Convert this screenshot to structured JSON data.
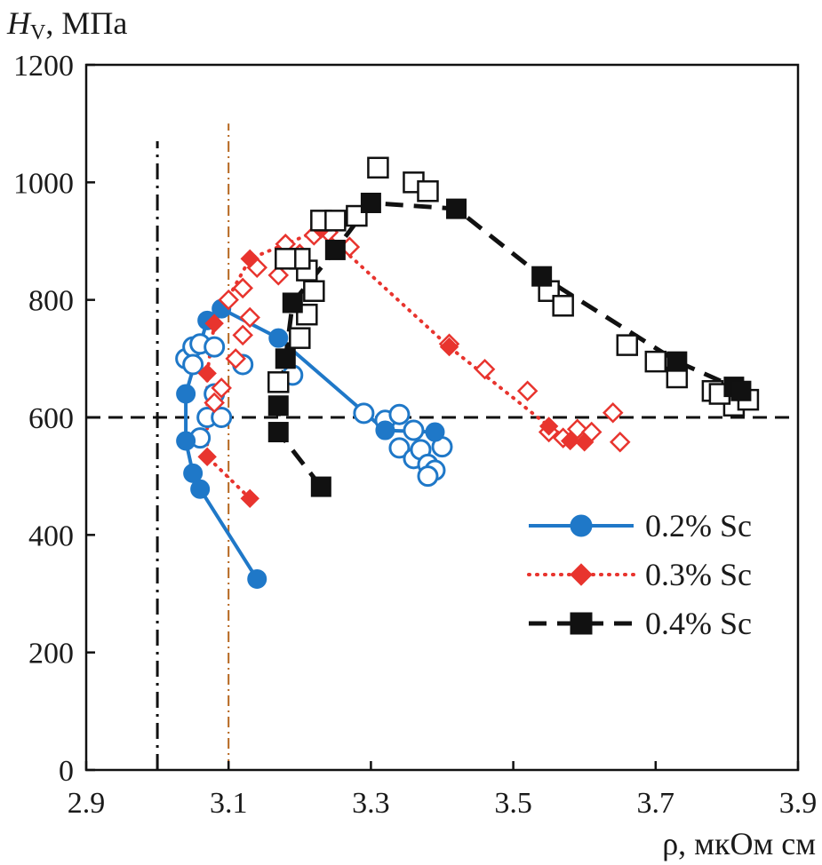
{
  "chart_data": {
    "type": "scatter",
    "ylabel_symbol": "H",
    "ylabel_subscript": "V",
    "ylabel_unit": ", МПа",
    "xlabel": "ρ, мкОм см",
    "xlim": [
      2.9,
      3.9
    ],
    "ylim": [
      0,
      1200
    ],
    "xticks": [
      2.9,
      3.1,
      3.3,
      3.5,
      3.7,
      3.9
    ],
    "xtick_labels": [
      "2.9",
      "3.1",
      "3.3",
      "3.5",
      "3.7",
      "3.9"
    ],
    "yticks": [
      0,
      200,
      400,
      600,
      800,
      1000,
      1200
    ],
    "ytick_labels": [
      "0",
      "200",
      "400",
      "600",
      "800",
      "1000",
      "1200"
    ],
    "reference_lines": [
      {
        "name": "hline-600",
        "orientation": "horizontal",
        "value": 600,
        "style": "dashed",
        "color": "#111111"
      },
      {
        "name": "vline-3.0",
        "orientation": "vertical",
        "value": 3.0,
        "ymax": 1070,
        "style": "dashdot",
        "color": "#111111"
      },
      {
        "name": "vline-3.1",
        "orientation": "vertical",
        "value": 3.1,
        "ymax": 1100,
        "style": "dashdot-thin",
        "color": "#b5651d"
      }
    ],
    "series": [
      {
        "name": "0.2% Sc",
        "label": "0.2% Sc",
        "color": "#1f78c8",
        "marker": "circle",
        "line": "solid",
        "filled_points": [
          [
            3.14,
            325
          ],
          [
            3.06,
            478
          ],
          [
            3.05,
            505
          ],
          [
            3.04,
            560
          ],
          [
            3.04,
            640
          ],
          [
            3.07,
            765
          ],
          [
            3.09,
            785
          ],
          [
            3.17,
            735
          ],
          [
            3.32,
            578
          ],
          [
            3.39,
            575
          ]
        ],
        "open_points": [
          [
            3.04,
            700
          ],
          [
            3.05,
            720
          ],
          [
            3.06,
            725
          ],
          [
            3.08,
            720
          ],
          [
            3.05,
            690
          ],
          [
            3.08,
            640
          ],
          [
            3.12,
            690
          ],
          [
            3.07,
            600
          ],
          [
            3.09,
            600
          ],
          [
            3.06,
            565
          ],
          [
            3.19,
            672
          ],
          [
            3.29,
            607
          ],
          [
            3.32,
            595
          ],
          [
            3.34,
            605
          ],
          [
            3.36,
            578
          ],
          [
            3.34,
            548
          ],
          [
            3.36,
            530
          ],
          [
            3.37,
            545
          ],
          [
            3.38,
            520
          ],
          [
            3.39,
            510
          ],
          [
            3.4,
            550
          ],
          [
            3.38,
            500
          ]
        ]
      },
      {
        "name": "0.3% Sc",
        "label": "0.3% Sc",
        "color": "#e8342e",
        "marker": "diamond",
        "line": "dotted",
        "filled_points": [
          [
            3.13,
            462
          ],
          [
            3.07,
            533
          ],
          [
            3.07,
            675
          ],
          [
            3.08,
            760
          ],
          [
            3.13,
            870
          ],
          [
            3.23,
            920
          ],
          [
            3.41,
            720
          ],
          [
            3.55,
            585
          ],
          [
            3.58,
            560
          ],
          [
            3.6,
            558
          ]
        ],
        "open_points": [
          [
            3.08,
            625
          ],
          [
            3.09,
            650
          ],
          [
            3.11,
            700
          ],
          [
            3.12,
            740
          ],
          [
            3.1,
            800
          ],
          [
            3.12,
            820
          ],
          [
            3.13,
            770
          ],
          [
            3.14,
            855
          ],
          [
            3.17,
            842
          ],
          [
            3.18,
            895
          ],
          [
            3.2,
            878
          ],
          [
            3.22,
            910
          ],
          [
            3.24,
            915
          ],
          [
            3.27,
            890
          ],
          [
            3.41,
            725
          ],
          [
            3.46,
            682
          ],
          [
            3.52,
            645
          ],
          [
            3.55,
            575
          ],
          [
            3.57,
            565
          ],
          [
            3.59,
            580
          ],
          [
            3.61,
            575
          ],
          [
            3.64,
            608
          ],
          [
            3.65,
            558
          ]
        ]
      },
      {
        "name": "0.4% Sc",
        "label": "0.4% Sc",
        "color": "#111111",
        "marker": "square",
        "line": "dashed",
        "filled_points": [
          [
            3.23,
            482
          ],
          [
            3.17,
            575
          ],
          [
            3.17,
            620
          ],
          [
            3.18,
            700
          ],
          [
            3.19,
            795
          ],
          [
            3.25,
            885
          ],
          [
            3.3,
            965
          ],
          [
            3.42,
            955
          ],
          [
            3.54,
            840
          ],
          [
            3.73,
            695
          ],
          [
            3.81,
            652
          ],
          [
            3.82,
            645
          ]
        ],
        "open_points": [
          [
            3.17,
            660
          ],
          [
            3.2,
            735
          ],
          [
            3.21,
            775
          ],
          [
            3.22,
            815
          ],
          [
            3.21,
            850
          ],
          [
            3.2,
            870
          ],
          [
            3.18,
            870
          ],
          [
            3.23,
            935
          ],
          [
            3.25,
            935
          ],
          [
            3.28,
            943
          ],
          [
            3.31,
            1025
          ],
          [
            3.36,
            1000
          ],
          [
            3.38,
            985
          ],
          [
            3.55,
            815
          ],
          [
            3.57,
            790
          ],
          [
            3.66,
            723
          ],
          [
            3.7,
            695
          ],
          [
            3.73,
            668
          ],
          [
            3.78,
            645
          ],
          [
            3.81,
            620
          ],
          [
            3.83,
            630
          ],
          [
            3.79,
            640
          ]
        ]
      }
    ],
    "legend": {
      "position": "right-lower-middle"
    }
  }
}
